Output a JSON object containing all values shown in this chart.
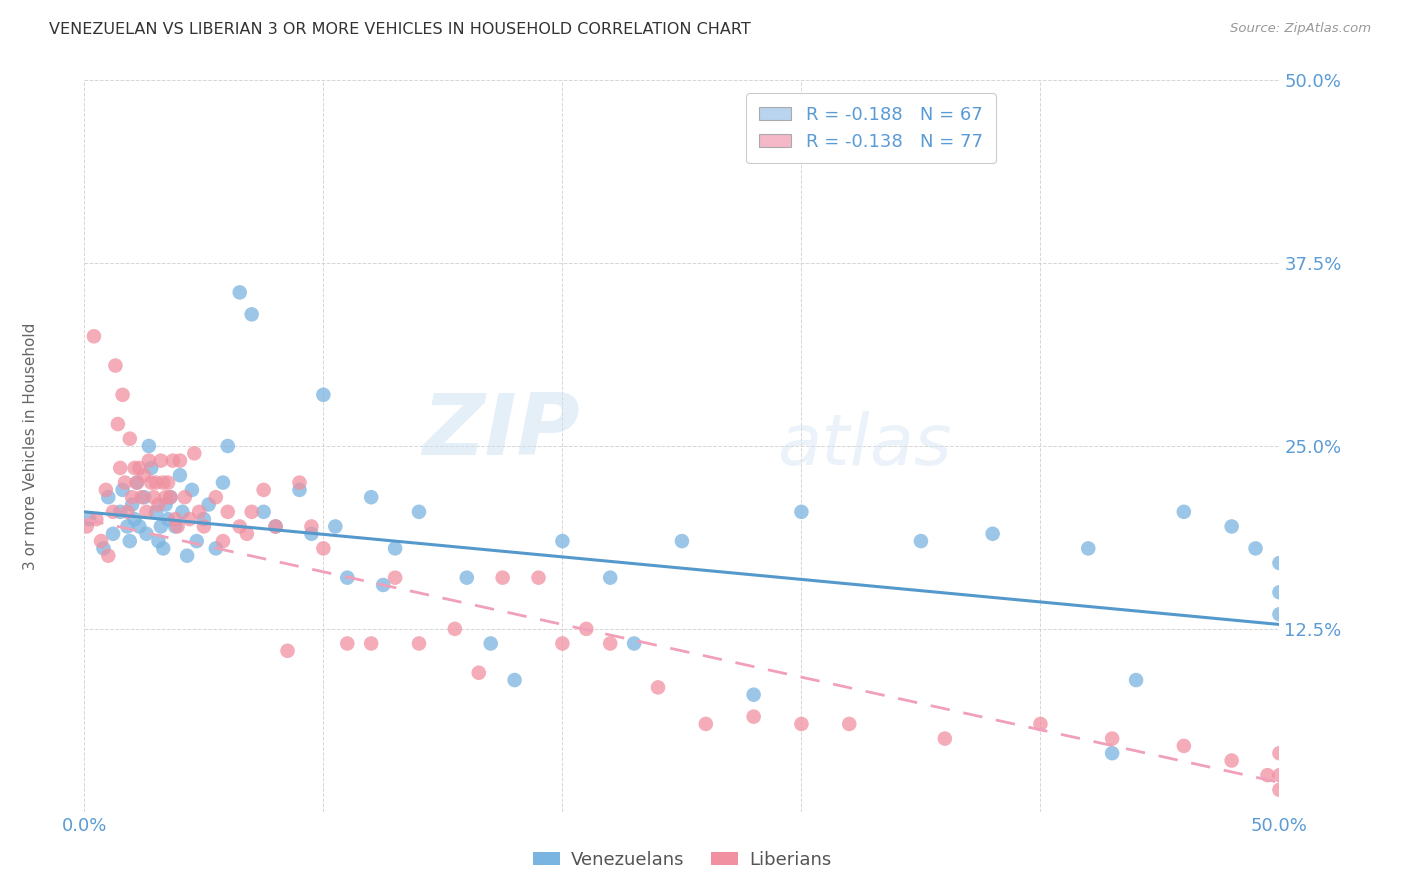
{
  "title": "VENEZUELAN VS LIBERIAN 3 OR MORE VEHICLES IN HOUSEHOLD CORRELATION CHART",
  "source": "Source: ZipAtlas.com",
  "ylabel": "3 or more Vehicles in Household",
  "xlim": [
    0.0,
    0.5
  ],
  "ylim": [
    0.0,
    0.5
  ],
  "yticks": [
    0.0,
    0.125,
    0.25,
    0.375,
    0.5
  ],
  "ytick_labels": [
    "",
    "12.5%",
    "25.0%",
    "37.5%",
    "50.0%"
  ],
  "xticks": [
    0.0,
    0.1,
    0.2,
    0.3,
    0.4,
    0.5
  ],
  "watermark_zip": "ZIP",
  "watermark_atlas": "atlas",
  "legend_entries": [
    {
      "label": "R = -0.188   N = 67",
      "color": "#b8d4ee"
    },
    {
      "label": "R = -0.138   N = 77",
      "color": "#f4b8c8"
    }
  ],
  "venezuelan_color": "#7ab4e0",
  "liberian_color": "#f090a0",
  "trendline_venezuelan_color": "#5599cc",
  "trendline_liberian_color": "#f0a0b8",
  "venezuelan_x": [
    0.002,
    0.008,
    0.01,
    0.012,
    0.015,
    0.016,
    0.018,
    0.019,
    0.02,
    0.021,
    0.022,
    0.023,
    0.025,
    0.026,
    0.027,
    0.028,
    0.03,
    0.031,
    0.032,
    0.033,
    0.034,
    0.035,
    0.036,
    0.038,
    0.04,
    0.041,
    0.043,
    0.045,
    0.047,
    0.05,
    0.052,
    0.055,
    0.058,
    0.06,
    0.065,
    0.07,
    0.075,
    0.08,
    0.09,
    0.095,
    0.1,
    0.105,
    0.11,
    0.12,
    0.125,
    0.13,
    0.14,
    0.16,
    0.17,
    0.18,
    0.2,
    0.22,
    0.23,
    0.25,
    0.28,
    0.3,
    0.35,
    0.38,
    0.42,
    0.43,
    0.44,
    0.46,
    0.48,
    0.49,
    0.5,
    0.5,
    0.5
  ],
  "venezuelan_y": [
    0.2,
    0.18,
    0.215,
    0.19,
    0.205,
    0.22,
    0.195,
    0.185,
    0.21,
    0.2,
    0.225,
    0.195,
    0.215,
    0.19,
    0.25,
    0.235,
    0.205,
    0.185,
    0.195,
    0.18,
    0.21,
    0.2,
    0.215,
    0.195,
    0.23,
    0.205,
    0.175,
    0.22,
    0.185,
    0.2,
    0.21,
    0.18,
    0.225,
    0.25,
    0.355,
    0.34,
    0.205,
    0.195,
    0.22,
    0.19,
    0.285,
    0.195,
    0.16,
    0.215,
    0.155,
    0.18,
    0.205,
    0.16,
    0.115,
    0.09,
    0.185,
    0.16,
    0.115,
    0.185,
    0.08,
    0.205,
    0.185,
    0.19,
    0.18,
    0.04,
    0.09,
    0.205,
    0.195,
    0.18,
    0.17,
    0.15,
    0.135
  ],
  "liberian_x": [
    0.001,
    0.004,
    0.005,
    0.007,
    0.009,
    0.01,
    0.012,
    0.013,
    0.014,
    0.015,
    0.016,
    0.017,
    0.018,
    0.019,
    0.02,
    0.021,
    0.022,
    0.023,
    0.024,
    0.025,
    0.026,
    0.027,
    0.028,
    0.029,
    0.03,
    0.031,
    0.032,
    0.033,
    0.034,
    0.035,
    0.036,
    0.037,
    0.038,
    0.039,
    0.04,
    0.042,
    0.044,
    0.046,
    0.048,
    0.05,
    0.055,
    0.058,
    0.06,
    0.065,
    0.068,
    0.07,
    0.075,
    0.08,
    0.085,
    0.09,
    0.095,
    0.1,
    0.11,
    0.12,
    0.13,
    0.14,
    0.155,
    0.165,
    0.175,
    0.19,
    0.2,
    0.21,
    0.22,
    0.24,
    0.26,
    0.28,
    0.3,
    0.32,
    0.36,
    0.4,
    0.43,
    0.46,
    0.48,
    0.495,
    0.5,
    0.5,
    0.5
  ],
  "liberian_y": [
    0.195,
    0.325,
    0.2,
    0.185,
    0.22,
    0.175,
    0.205,
    0.305,
    0.265,
    0.235,
    0.285,
    0.225,
    0.205,
    0.255,
    0.215,
    0.235,
    0.225,
    0.235,
    0.215,
    0.23,
    0.205,
    0.24,
    0.225,
    0.215,
    0.225,
    0.21,
    0.24,
    0.225,
    0.215,
    0.225,
    0.215,
    0.24,
    0.2,
    0.195,
    0.24,
    0.215,
    0.2,
    0.245,
    0.205,
    0.195,
    0.215,
    0.185,
    0.205,
    0.195,
    0.19,
    0.205,
    0.22,
    0.195,
    0.11,
    0.225,
    0.195,
    0.18,
    0.115,
    0.115,
    0.16,
    0.115,
    0.125,
    0.095,
    0.16,
    0.16,
    0.115,
    0.125,
    0.115,
    0.085,
    0.06,
    0.065,
    0.06,
    0.06,
    0.05,
    0.06,
    0.05,
    0.045,
    0.035,
    0.025,
    0.015,
    0.025,
    0.04
  ],
  "ven_trendline_x0": 0.0,
  "ven_trendline_y0": 0.205,
  "ven_trendline_x1": 0.5,
  "ven_trendline_y1": 0.128,
  "lib_trendline_x0": 0.0,
  "lib_trendline_y0": 0.2,
  "lib_trendline_x1": 0.5,
  "lib_trendline_y1": 0.02
}
